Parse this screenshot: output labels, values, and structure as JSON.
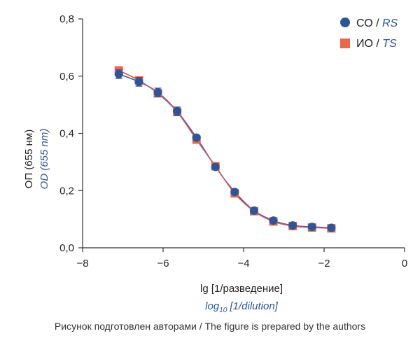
{
  "chart_data": {
    "type": "scatter",
    "xlim": [
      -8,
      0
    ],
    "ylim": [
      0,
      0.8
    ],
    "x_ticks": [
      "−8",
      "−6",
      "−4",
      "−2",
      "0"
    ],
    "y_ticks": [
      "0,0",
      "0,2",
      "0,4",
      "0,6",
      "0,8"
    ],
    "ylabel_ru": "ОП (655 нм)",
    "ylabel_en": "OD (655 nm)",
    "xlabel_ru": "lg [1/разведение]",
    "xlabel_en_base": "log",
    "xlabel_en_sub": "10",
    "xlabel_en_rest": " [1/dilution]",
    "legend_position": "top-right",
    "grid": false,
    "series": [
      {
        "name_ru": "СО",
        "name_en": "RS",
        "marker": "circle",
        "color": "#2f5597",
        "x": [
          -7.1,
          -6.6,
          -6.13,
          -5.65,
          -5.17,
          -4.7,
          -4.22,
          -3.74,
          -3.26,
          -2.78,
          -2.3,
          -1.82
        ],
        "y": [
          0.607,
          0.58,
          0.543,
          0.477,
          0.385,
          0.283,
          0.195,
          0.13,
          0.095,
          0.078,
          0.073,
          0.07
        ],
        "err": [
          0.015,
          0.015,
          0.015,
          0.015,
          0.008,
          0.008,
          0.008,
          0.008,
          0.008,
          0.008,
          0.008,
          0.008
        ]
      },
      {
        "name_ru": "ИО",
        "name_en": "TS",
        "marker": "square",
        "color": "#e8694a",
        "x": [
          -7.1,
          -6.6,
          -6.13,
          -5.65,
          -5.17,
          -4.7,
          -4.22,
          -3.74,
          -3.26,
          -2.78,
          -2.3,
          -1.82
        ],
        "y": [
          0.62,
          0.585,
          0.54,
          0.475,
          0.378,
          0.285,
          0.19,
          0.128,
          0.092,
          0.076,
          0.071,
          0.068
        ],
        "err": [
          0.012,
          0.012,
          0.012,
          0.012,
          0.008,
          0.008,
          0.008,
          0.008,
          0.008,
          0.008,
          0.008,
          0.008
        ]
      }
    ]
  },
  "caption": "Рисунок подготовлен авторами / The figure is prepared by the authors"
}
